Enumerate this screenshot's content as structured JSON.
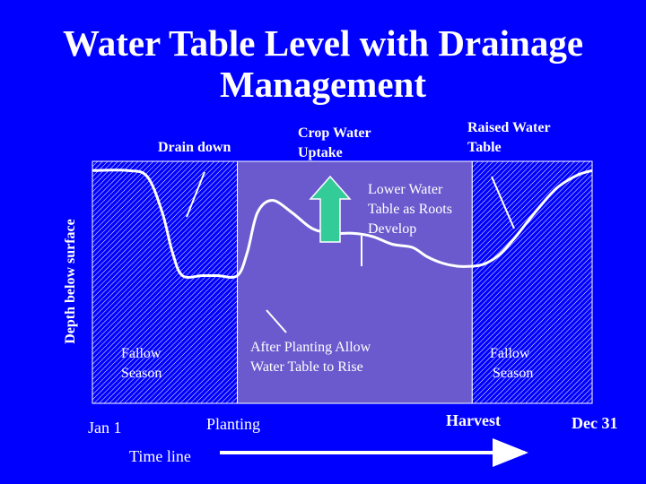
{
  "title_line1": "Water Table Level with Drainage",
  "title_line2": "Management",
  "colors": {
    "background": "#0000ff",
    "crop_period": "#6a5acd",
    "fallow_hatch": "#ffffff",
    "arrow": "#33cc99",
    "text": "#ffffff"
  },
  "annotations": {
    "drain_down": "Drain down",
    "crop_uptake_1": "Crop Water",
    "crop_uptake_2": "Uptake",
    "raised_1": "Raised Water",
    "raised_2": "Table",
    "lower_1": "Lower Water",
    "lower_2": "Table as Roots",
    "lower_3": "Develop",
    "after_1": "After Planting Allow",
    "after_2": "Water Table to Rise",
    "fallow_left_1": "Fallow",
    "fallow_left_2": "Season",
    "fallow_right_1": "Fallow",
    "fallow_right_2": "Season"
  },
  "timeline": {
    "jan": "Jan 1",
    "planting": "Planting",
    "harvest": "Harvest",
    "dec": "Dec 31",
    "label": "Time line"
  },
  "chart_data": {
    "type": "line",
    "xlabel": "",
    "ylabel": "Depth below surface",
    "x_range": [
      0,
      100
    ],
    "y_range": [
      0,
      100
    ],
    "y_inverted": true,
    "periods": [
      {
        "name": "Fallow Season",
        "from": 0,
        "to": 29
      },
      {
        "name": "Crop",
        "from": 29,
        "to": 76
      },
      {
        "name": "Fallow Season",
        "from": 76,
        "to": 100
      }
    ],
    "series": [
      {
        "x": [
          0,
          7,
          11,
          14,
          16,
          18,
          22,
          25,
          29,
          31,
          33,
          36,
          40,
          44,
          48,
          52,
          56,
          60,
          64,
          67,
          70,
          73,
          76,
          78,
          80,
          82,
          85,
          89,
          93,
          97,
          100
        ],
        "y": [
          3,
          3,
          7,
          30,
          55,
          70,
          70,
          70,
          70,
          55,
          30,
          22,
          30,
          40,
          43,
          43,
          45,
          50,
          52,
          58,
          62,
          64,
          64,
          63,
          60,
          55,
          44,
          28,
          14,
          6,
          3
        ]
      }
    ]
  }
}
